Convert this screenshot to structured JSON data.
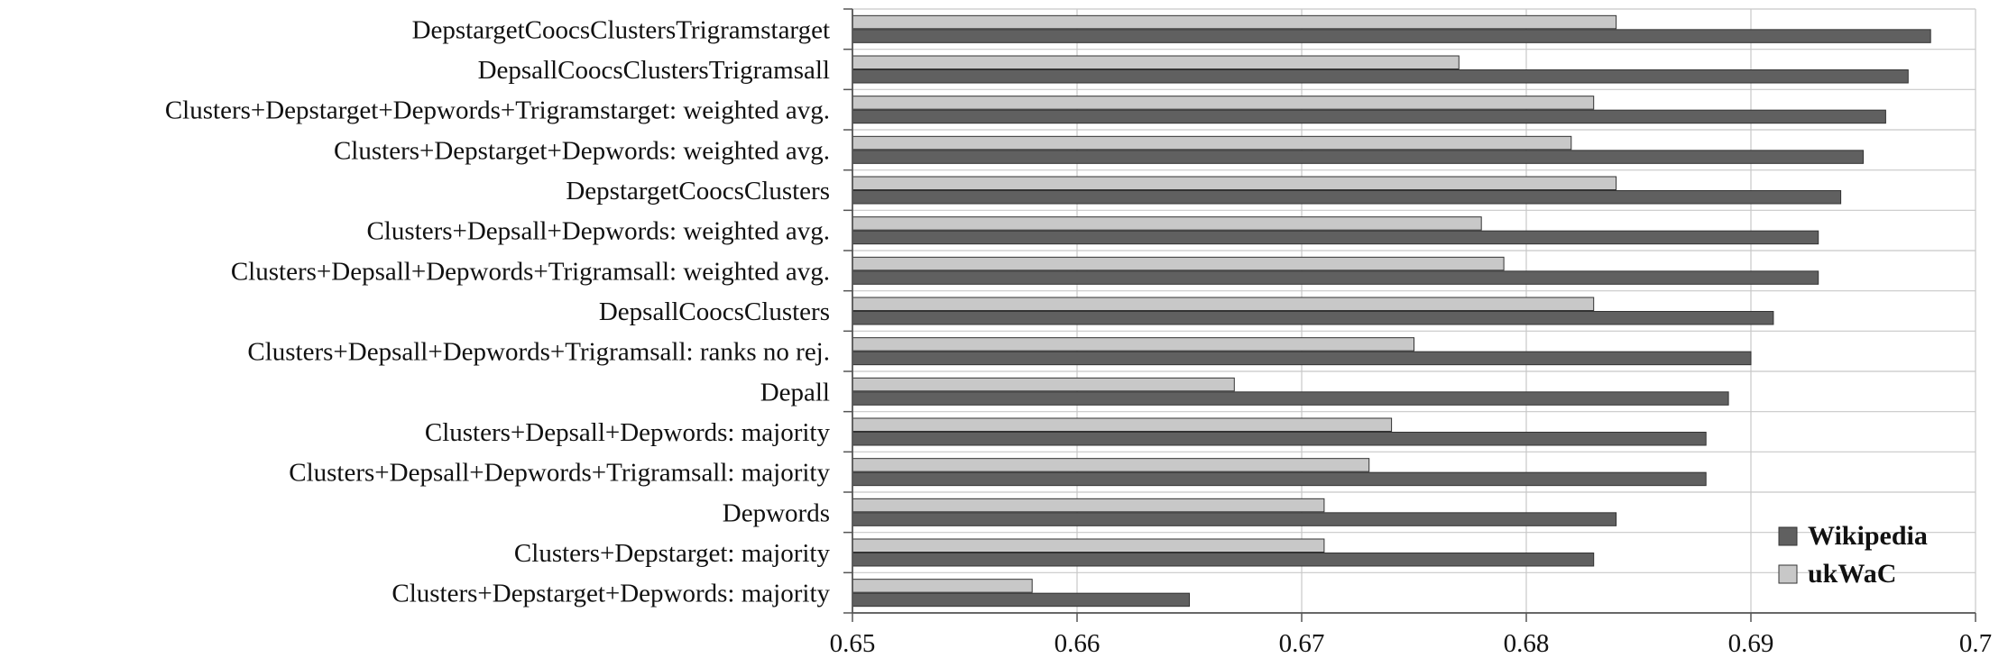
{
  "chart_data": {
    "type": "bar",
    "orientation": "horizontal",
    "title": "",
    "xlabel": "",
    "ylabel": "",
    "xlim": [
      0.65,
      0.7
    ],
    "x_ticks": [
      "0.65",
      "0.66",
      "0.67",
      "0.68",
      "0.69",
      "0.7"
    ],
    "grid": "vertical gridlines at x ticks, horizontal separators between categories",
    "legend_position": "bottom-right",
    "categories": [
      "DepstargetCoocsClustersTrigramstarget",
      "DepsallCoocsClustersTrigramsall",
      "Clusters+Depstarget+Depwords+Trigramstarget: weighted avg.",
      "Clusters+Depstarget+Depwords: weighted avg.",
      "DepstargetCoocsClusters",
      "Clusters+Depsall+Depwords: weighted avg.",
      "Clusters+Depsall+Depwords+Trigramsall: weighted avg.",
      "DepsallCoocsClusters",
      "Clusters+Depsall+Depwords+Trigramsall: ranks no rej.",
      "Depall",
      "Clusters+Depsall+Depwords: majority",
      "Clusters+Depsall+Depwords+Trigramsall: majority",
      "Depwords",
      "Clusters+Depstarget: majority",
      "Clusters+Depstarget+Depwords: majority"
    ],
    "series": [
      {
        "name": "Wikipedia",
        "color": "#606060",
        "values": [
          0.698,
          0.697,
          0.696,
          0.695,
          0.694,
          0.693,
          0.693,
          0.691,
          0.69,
          0.689,
          0.688,
          0.688,
          0.684,
          0.683,
          0.665
        ]
      },
      {
        "name": "ukWaC",
        "color": "#c8c8c8",
        "values": [
          0.684,
          0.677,
          0.683,
          0.682,
          0.684,
          0.678,
          0.679,
          0.683,
          0.675,
          0.667,
          0.674,
          0.673,
          0.671,
          0.671,
          0.658
        ]
      }
    ]
  }
}
